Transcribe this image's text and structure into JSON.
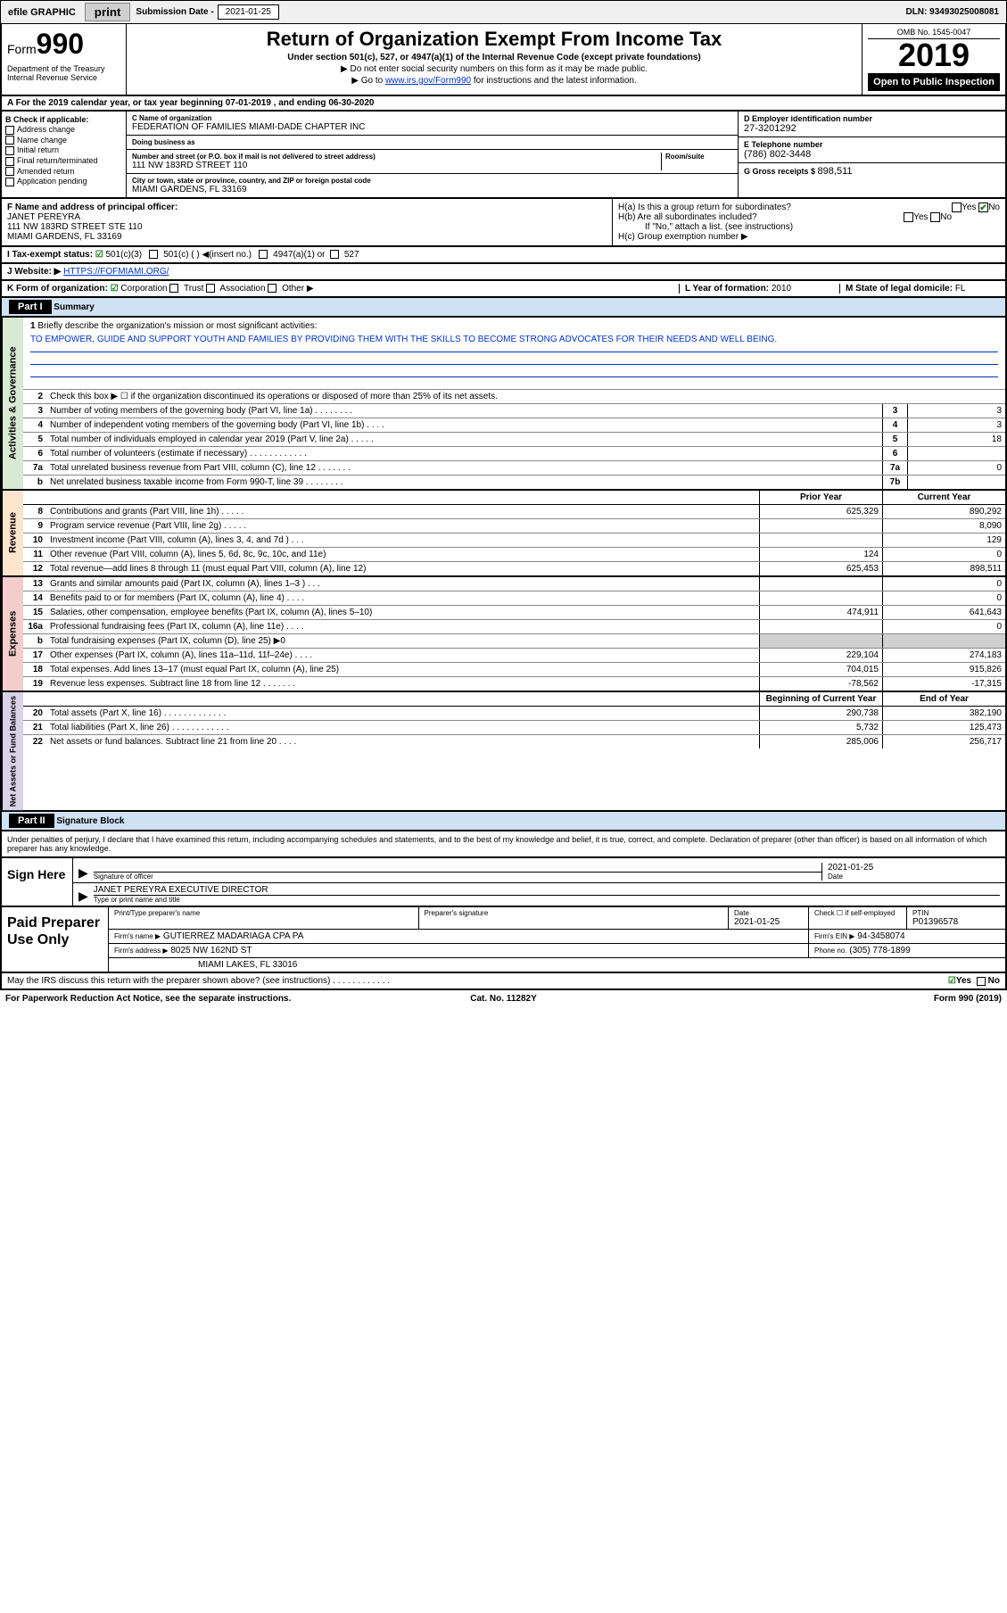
{
  "top_bar": {
    "efile": "efile GRAPHIC",
    "print": "print",
    "submission_label": "Submission Date - ",
    "submission_date": "2021-01-25",
    "dln": "DLN: 93493025008081"
  },
  "header": {
    "form_label": "Form",
    "form_num": "990",
    "dept": "Department of the Treasury Internal Revenue Service",
    "title": "Return of Organization Exempt From Income Tax",
    "subtitle": "Under section 501(c), 527, or 4947(a)(1) of the Internal Revenue Code (except private foundations)",
    "line1": "▶ Do not enter social security numbers on this form as it may be made public.",
    "line2_pre": "▶ Go to ",
    "line2_link": "www.irs.gov/Form990",
    "line2_post": " for instructions and the latest information.",
    "omb": "OMB No. 1545-0047",
    "year": "2019",
    "open_public": "Open to Public Inspection"
  },
  "row_a": "A For the 2019 calendar year, or tax year beginning 07-01-2019    , and ending 06-30-2020",
  "section_b": {
    "header": "B Check if applicable:",
    "opts": [
      "Address change",
      "Name change",
      "Initial return",
      "Final return/terminated",
      "Amended return",
      "Application pending"
    ],
    "c_name_label": "C Name of organization",
    "c_name": "FEDERATION OF FAMILIES MIAMI-DADE CHAPTER INC",
    "dba_label": "Doing business as",
    "dba": "",
    "addr_label": "Number and street (or P.O. box if mail is not delivered to street address)",
    "room_label": "Room/suite",
    "addr": "111 NW 183RD STREET 110",
    "city_label": "City or town, state or province, country, and ZIP or foreign postal code",
    "city": "MIAMI GARDENS, FL  33169",
    "d_label": "D Employer identification number",
    "d_val": "27-3201292",
    "e_label": "E Telephone number",
    "e_val": "(786) 802-3448",
    "g_label": "G Gross receipts $ ",
    "g_val": "898,511"
  },
  "section_fh": {
    "f_label": "F Name and address of principal officer:",
    "f_name": "JANET PEREYRA",
    "f_addr1": "111 NW 183RD STREET STE 110",
    "f_addr2": "MIAMI GARDENS, FL  33169",
    "ha": "H(a)  Is this a group return for subordinates?",
    "ha_yes": "Yes",
    "ha_no": "No",
    "hb": "H(b)  Are all subordinates included?",
    "hb_note": "If \"No,\" attach a list. (see instructions)",
    "hc": "H(c)  Group exemption number ▶"
  },
  "row_i": {
    "label": "I  Tax-exempt status:",
    "o1": "501(c)(3)",
    "o2": "501(c) (  ) ◀(insert no.)",
    "o3": "4947(a)(1) or",
    "o4": "527"
  },
  "row_j": {
    "label": "J  Website: ▶",
    "val": "HTTPS://FOFMIAMI.ORG/"
  },
  "row_k": {
    "label": "K Form of organization:",
    "o1": "Corporation",
    "o2": "Trust",
    "o3": "Association",
    "o4": "Other ▶",
    "l_label": "L Year of formation: ",
    "l_val": "2010",
    "m_label": "M State of legal domicile: ",
    "m_val": "FL"
  },
  "part1": {
    "header": "Part I",
    "title": "Summary",
    "q1_label": "1",
    "q1_text": "Briefly describe the organization's mission or most significant activities:",
    "q1_mission": "TO EMPOWER, GUIDE AND SUPPORT YOUTH AND FAMILIES BY PROVIDING THEM WITH THE SKILLS TO BECOME STRONG ADVOCATES FOR THEIR NEEDS AND WELL BEING.",
    "q2": "Check this box ▶ ☐  if the organization discontinued its operations or disposed of more than 25% of its net assets.",
    "lines_gov": [
      {
        "n": "3",
        "t": "Number of voting members of the governing body (Part VI, line 1a)  .   .   .   .   .   .   .   .",
        "b": "3",
        "v": "3"
      },
      {
        "n": "4",
        "t": "Number of independent voting members of the governing body (Part VI, line 1b)  .   .   .   .",
        "b": "4",
        "v": "3"
      },
      {
        "n": "5",
        "t": "Total number of individuals employed in calendar year 2019 (Part V, line 2a)  .   .   .   .   .",
        "b": "5",
        "v": "18"
      },
      {
        "n": "6",
        "t": "Total number of volunteers (estimate if necessary)   .   .   .   .   .   .   .   .   .   .   .   .",
        "b": "6",
        "v": ""
      },
      {
        "n": "7a",
        "t": "Total unrelated business revenue from Part VIII, column (C), line 12  .   .   .   .   .   .   .",
        "b": "7a",
        "v": "0"
      },
      {
        "n": "b",
        "t": "Net unrelated business taxable income from Form 990-T, line 39   .   .   .   .   .   .   .   .",
        "b": "7b",
        "v": ""
      }
    ],
    "col_prior": "Prior Year",
    "col_current": "Current Year",
    "lines_rev": [
      {
        "n": "8",
        "t": "Contributions and grants (Part VIII, line 1h)  .   .   .   .   .",
        "v1": "625,329",
        "v2": "890,292"
      },
      {
        "n": "9",
        "t": "Program service revenue (Part VIII, line 2g)  .   .   .   .   .",
        "v1": "",
        "v2": "8,090"
      },
      {
        "n": "10",
        "t": "Investment income (Part VIII, column (A), lines 3, 4, and 7d )  .   .   .",
        "v1": "",
        "v2": "129"
      },
      {
        "n": "11",
        "t": "Other revenue (Part VIII, column (A), lines 5, 6d, 8c, 9c, 10c, and 11e)",
        "v1": "124",
        "v2": "0"
      },
      {
        "n": "12",
        "t": "Total revenue—add lines 8 through 11 (must equal Part VIII, column (A), line 12)",
        "v1": "625,453",
        "v2": "898,511"
      }
    ],
    "lines_exp": [
      {
        "n": "13",
        "t": "Grants and similar amounts paid (Part IX, column (A), lines 1–3 )  .   .   .",
        "v1": "",
        "v2": "0"
      },
      {
        "n": "14",
        "t": "Benefits paid to or for members (Part IX, column (A), line 4)  .   .   .   .",
        "v1": "",
        "v2": "0"
      },
      {
        "n": "15",
        "t": "Salaries, other compensation, employee benefits (Part IX, column (A), lines 5–10)",
        "v1": "474,911",
        "v2": "641,643"
      },
      {
        "n": "16a",
        "t": "Professional fundraising fees (Part IX, column (A), line 11e)  .   .   .   .",
        "v1": "",
        "v2": "0"
      },
      {
        "n": "b",
        "t": "Total fundraising expenses (Part IX, column (D), line 25) ▶0",
        "v1": "",
        "v2": "",
        "shaded": true
      },
      {
        "n": "17",
        "t": "Other expenses (Part IX, column (A), lines 11a–11d, 11f–24e)  .   .   .   .",
        "v1": "229,104",
        "v2": "274,183"
      },
      {
        "n": "18",
        "t": "Total expenses. Add lines 13–17 (must equal Part IX, column (A), line 25)",
        "v1": "704,015",
        "v2": "915,826"
      },
      {
        "n": "19",
        "t": "Revenue less expenses. Subtract line 18 from line 12  .   .   .   .   .   .   .",
        "v1": "-78,562",
        "v2": "-17,315"
      }
    ],
    "col_begin": "Beginning of Current Year",
    "col_end": "End of Year",
    "lines_net": [
      {
        "n": "20",
        "t": "Total assets (Part X, line 16)  .   .   .   .   .   .   .   .   .   .   .   .   .",
        "v1": "290,738",
        "v2": "382,190"
      },
      {
        "n": "21",
        "t": "Total liabilities (Part X, line 26)  .   .   .   .   .   .   .   .   .   .   .   .",
        "v1": "5,732",
        "v2": "125,473"
      },
      {
        "n": "22",
        "t": "Net assets or fund balances. Subtract line 21 from line 20  .   .   .   .",
        "v1": "285,006",
        "v2": "256,717"
      }
    ],
    "vtab_gov": "Activities & Governance",
    "vtab_rev": "Revenue",
    "vtab_exp": "Expenses",
    "vtab_net": "Net Assets or Fund Balances"
  },
  "part2": {
    "header": "Part II",
    "title": "Signature Block",
    "intro": "Under penalties of perjury, I declare that I have examined this return, including accompanying schedules and statements, and to the best of my knowledge and belief, it is true, correct, and complete. Declaration of preparer (other than officer) is based on all information of which preparer has any knowledge.",
    "sign_here": "Sign Here",
    "sig_officer_label": "Signature of officer",
    "sig_date_label": "Date",
    "sig_date": "2021-01-25",
    "sig_name": "JANET PEREYRA  EXECUTIVE DIRECTOR",
    "sig_name_label": "Type or print name and title",
    "paid_prep": "Paid Preparer Use Only",
    "prep_name_label": "Print/Type preparer's name",
    "prep_sig_label": "Preparer's signature",
    "prep_date_label": "Date",
    "prep_date": "2021-01-25",
    "prep_check_label": "Check ☐ if self-employed",
    "ptin_label": "PTIN",
    "ptin": "P01396578",
    "firm_name_label": "Firm's name   ▶",
    "firm_name": "GUTIERREZ MADARIAGA CPA PA",
    "firm_ein_label": "Firm's EIN ▶",
    "firm_ein": "94-3458074",
    "firm_addr_label": "Firm's address ▶",
    "firm_addr1": "8025 NW 162ND ST",
    "firm_addr2": "MIAMI LAKES, FL  33016",
    "phone_label": "Phone no.",
    "phone": "(305) 778-1899",
    "discuss": "May the IRS discuss this return with the preparer shown above? (see instructions)   .   .   .   .   .   .   .   .   .   .   .   .",
    "discuss_yes": "Yes",
    "discuss_no": "No"
  },
  "footer": {
    "l": "For Paperwork Reduction Act Notice, see the separate instructions.",
    "m": "Cat. No. 11282Y",
    "r": "Form 990 (2019)"
  }
}
